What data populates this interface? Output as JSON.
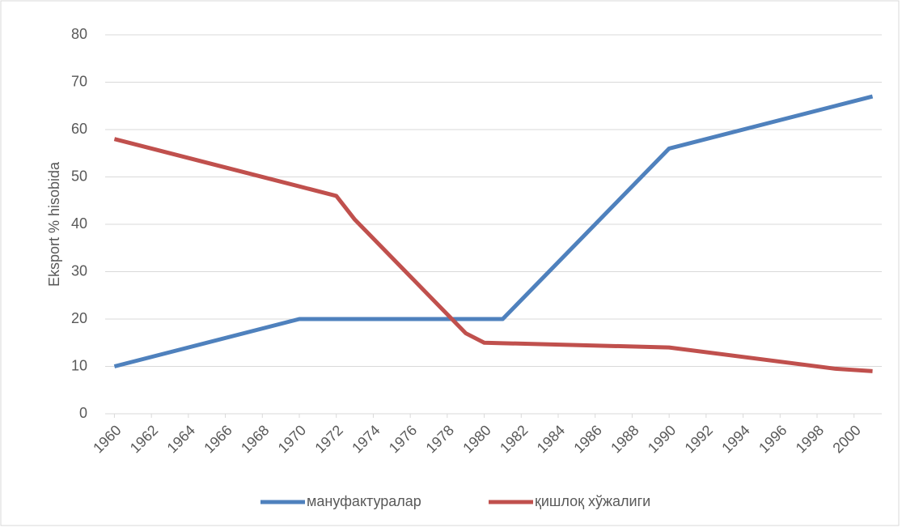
{
  "chart_data": {
    "type": "line",
    "y_label": "Eksport % hisobida",
    "x": [
      1960,
      1970,
      1972,
      1973,
      1979,
      1980,
      1981,
      1990,
      1999,
      2001
    ],
    "series": [
      {
        "name": "мануфактуралар",
        "color": "#4f81bd",
        "values": [
          10,
          20,
          20,
          20,
          20,
          20,
          20,
          56,
          65,
          67
        ]
      },
      {
        "name": "қишлоқ хўжалиги",
        "color": "#c0504d",
        "values": [
          58,
          48,
          46,
          41,
          17,
          15,
          14.9,
          14,
          9.5,
          9
        ]
      }
    ],
    "xlim": [
      1959.5,
      2001.5
    ],
    "xticks": [
      1960,
      1962,
      1964,
      1966,
      1968,
      1970,
      1972,
      1974,
      1976,
      1978,
      1980,
      1982,
      1984,
      1986,
      1988,
      1990,
      1992,
      1994,
      1996,
      1998,
      2000
    ],
    "ylim": [
      0,
      80
    ],
    "yticks": [
      0,
      10,
      20,
      30,
      40,
      50,
      60,
      70,
      80
    ],
    "grid": true,
    "legend": "bottom"
  }
}
